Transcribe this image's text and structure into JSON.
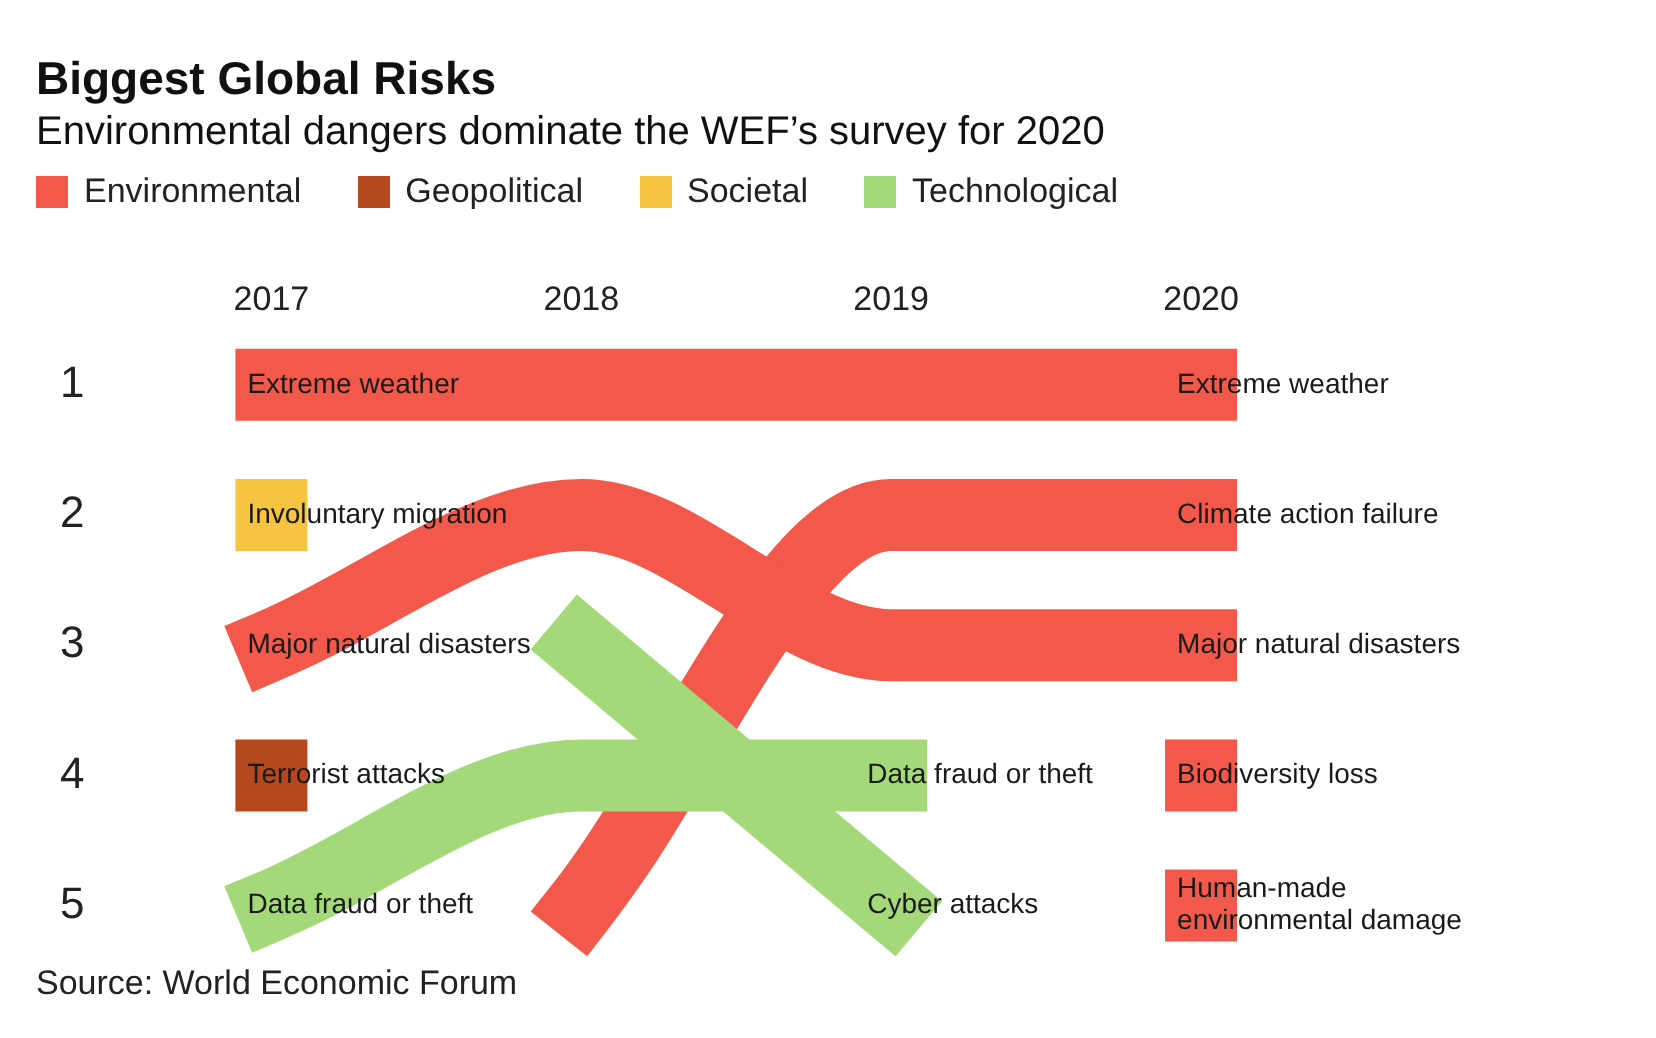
{
  "chart_data": {
    "type": "line",
    "title": "Biggest Global Risks",
    "subtitle": "Environmental dangers dominate the WEF’s survey for 2020",
    "categories": [
      "2017",
      "2018",
      "2019",
      "2020"
    ],
    "ylim": [
      5,
      1
    ],
    "yticks": [
      1,
      2,
      3,
      4,
      5
    ],
    "marker": "none",
    "series": [
      {
        "name": "Extreme weather",
        "color": "#f2594a",
        "values": [
          1,
          1,
          1,
          1
        ]
      },
      {
        "name": "Terrorist attacks",
        "color": "#b5481c",
        "marker": "square",
        "values": [
          4,
          null,
          null,
          null
        ]
      },
      {
        "name": "Involuntary migration",
        "color": "#f6c440",
        "marker": "square",
        "values": [
          2,
          null,
          null,
          null
        ]
      },
      {
        "name": "Data fraud or theft",
        "color": "#a4d97a",
        "values": [
          5,
          4,
          4,
          null
        ]
      },
      {
        "name": "Cyber attacks",
        "color": "#a4d97a",
        "values": [
          null,
          3,
          5,
          null
        ]
      },
      {
        "name": "Major natural disasters",
        "color": "#f2594a",
        "values": [
          3,
          2,
          3,
          3
        ]
      },
      {
        "name": "Climate action failure",
        "color": "#f2594a",
        "values": [
          null,
          5,
          2,
          2
        ]
      },
      {
        "name": "Biodiversity loss",
        "color": "#f2594a",
        "marker": "square",
        "values": [
          null,
          null,
          null,
          4
        ]
      },
      {
        "name": "Human-made environmental damage",
        "color": "#f2594a",
        "marker": "square",
        "values": [
          null,
          null,
          null,
          5
        ]
      }
    ],
    "annotations": [
      "Environmental",
      "Geopolitical",
      "Societal",
      "Technological",
      "Source: World Economic Forum"
    ]
  }
}
